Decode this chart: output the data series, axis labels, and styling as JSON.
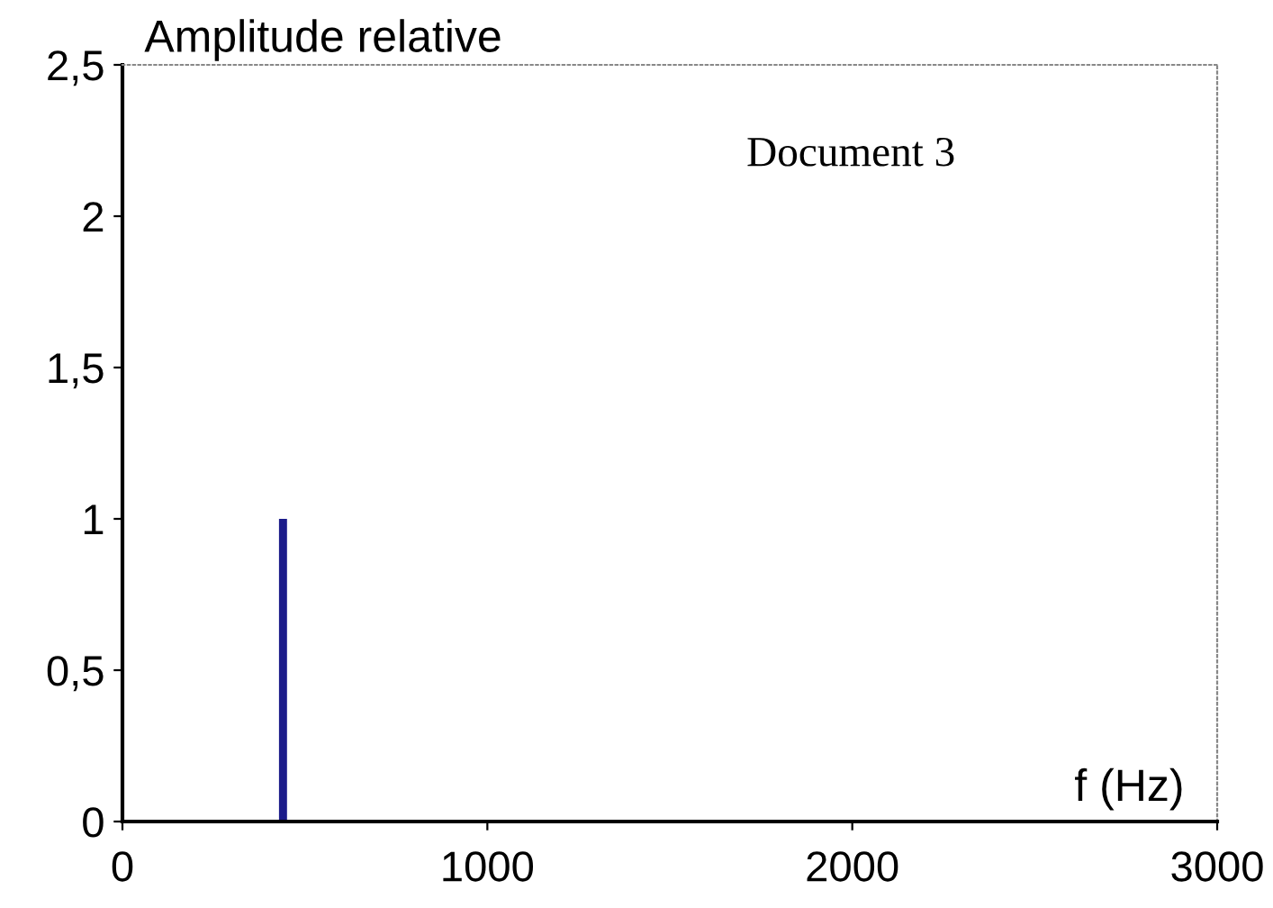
{
  "chart_data": {
    "type": "bar",
    "ylabel": "Amplitude relative",
    "xlabel": "f (Hz)",
    "annotations": [
      "Document 3"
    ],
    "x": [
      440
    ],
    "values": [
      1
    ],
    "color": "#1c1c8a",
    "xlim": [
      0,
      3000
    ],
    "xticks": [
      0,
      1000,
      2000,
      3000
    ],
    "ylim": [
      0,
      2.5
    ],
    "yticks": [
      0,
      {
        "value": 0.5,
        "label": "0,5"
      },
      1,
      {
        "value": 1.5,
        "label": "1,5"
      },
      2,
      {
        "value": 2.5,
        "label": "2,5"
      }
    ],
    "grid": false
  }
}
